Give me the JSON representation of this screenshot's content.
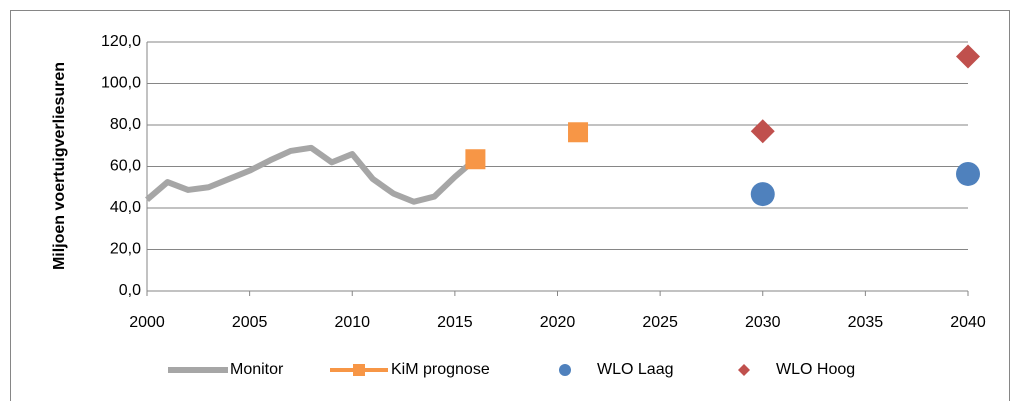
{
  "chart_data": {
    "type": "line",
    "y_label": "Miljoen voertuigverliesuren",
    "xlim": [
      2000,
      2040
    ],
    "xticks": [
      2000,
      2005,
      2010,
      2015,
      2020,
      2025,
      2030,
      2035,
      2040
    ],
    "ylim": [
      0,
      120
    ],
    "yticks": [
      {
        "value": 0,
        "label": "0,0"
      },
      {
        "value": 20,
        "label": "20,0"
      },
      {
        "value": 40,
        "label": "40,0"
      },
      {
        "value": 60,
        "label": "60,0"
      },
      {
        "value": 80,
        "label": "80,0"
      },
      {
        "value": 100,
        "label": "100,0"
      },
      {
        "value": 120,
        "label": "120,0"
      }
    ],
    "grid": true,
    "legend": "bottom",
    "series": [
      {
        "name": "Monitor",
        "color": "#a6a6a6",
        "style": "line",
        "marker": "none",
        "x": [
          2000,
          2001,
          2002,
          2003,
          2004,
          2005,
          2006,
          2007,
          2008,
          2009,
          2010,
          2011,
          2012,
          2013,
          2014,
          2015,
          2016
        ],
        "values": [
          44,
          52.5,
          48.7,
          50,
          54,
          58,
          63,
          67.5,
          69,
          62,
          66,
          54,
          47,
          43,
          45.5,
          55,
          63.5
        ]
      },
      {
        "name": "KiM prognose",
        "color": "#f79646",
        "style": "marker",
        "marker": "square",
        "x": [
          2016,
          2021
        ],
        "values": [
          63.5,
          76.5
        ]
      },
      {
        "name": "WLO Laag",
        "color": "#4f81bd",
        "style": "marker",
        "marker": "circle",
        "x": [
          2030,
          2040
        ],
        "values": [
          46.7,
          56.4
        ]
      },
      {
        "name": "WLO Hoog",
        "color": "#c0504d",
        "style": "marker",
        "marker": "diamond",
        "x": [
          2030,
          2040
        ],
        "values": [
          77,
          113
        ]
      }
    ]
  }
}
